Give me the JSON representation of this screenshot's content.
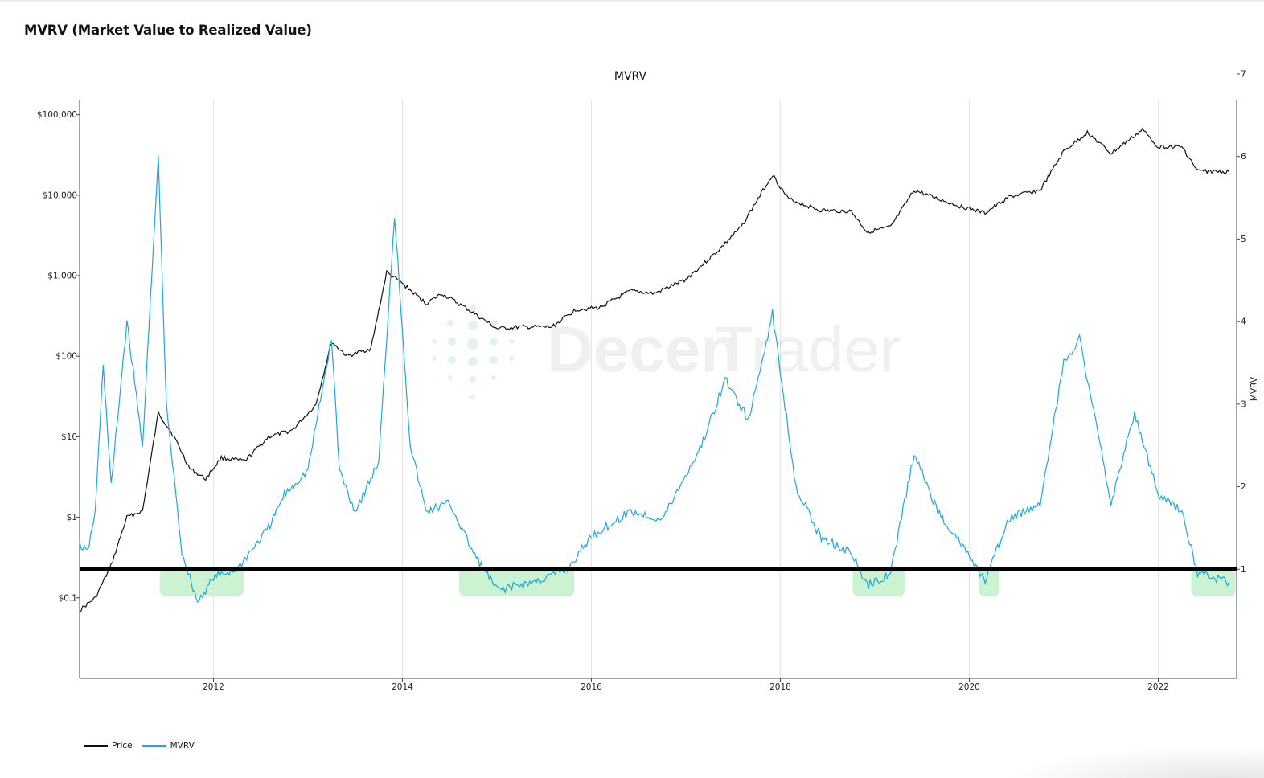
{
  "page": {
    "title": "MVRV (Market Value to Realized Value)"
  },
  "watermark": {
    "text_bold": "Decen",
    "text_light": "Trader"
  },
  "chart_data": {
    "type": "line",
    "title": "MVRV",
    "xlabel": "",
    "y_left": {
      "scale": "log",
      "ticks": [
        "$0.1",
        "$1",
        "$10",
        "$100",
        "$1,000",
        "$10,000",
        "$100,000"
      ],
      "tick_values": [
        0.1,
        1,
        10,
        100,
        1000,
        10000,
        100000
      ],
      "range": [
        0.01,
        150000
      ]
    },
    "y_right": {
      "label": "MVRV",
      "scale": "linear",
      "ticks": [
        "1",
        "2",
        "3",
        "4",
        "5",
        "6",
        "7"
      ],
      "tick_values": [
        1,
        2,
        3,
        4,
        5,
        6,
        7
      ],
      "range": [
        0.0,
        7.0
      ]
    },
    "x_ticks": [
      "2012",
      "2014",
      "2016",
      "2018",
      "2020",
      "2022"
    ],
    "x_range": [
      "2010-08",
      "2022-10"
    ],
    "grid": {
      "x": true,
      "y": false
    },
    "legend_position": "bottom-left",
    "colors": {
      "price": "#111111",
      "mvrv": "#1aa8e0",
      "highlight": "#7ee08c",
      "reference_line": "#000000"
    },
    "reference_line": {
      "axis": "right",
      "value": 1
    },
    "highlight_zones": [
      {
        "start": "2011-07",
        "end": "2012-04"
      },
      {
        "start": "2014-09",
        "end": "2015-10"
      },
      {
        "start": "2018-11",
        "end": "2019-04"
      },
      {
        "start": "2020-03",
        "end": "2020-04"
      },
      {
        "start": "2022-06",
        "end": "2022-10"
      }
    ],
    "series": [
      {
        "name": "Price",
        "axis": "left",
        "points": [
          [
            "2010-08",
            0.07
          ],
          [
            "2010-10",
            0.1
          ],
          [
            "2010-12",
            0.25
          ],
          [
            "2011-02",
            1.0
          ],
          [
            "2011-04",
            1.2
          ],
          [
            "2011-06",
            20
          ],
          [
            "2011-08",
            10
          ],
          [
            "2011-10",
            4
          ],
          [
            "2011-12",
            3
          ],
          [
            "2012-02",
            5.5
          ],
          [
            "2012-05",
            5
          ],
          [
            "2012-08",
            10
          ],
          [
            "2012-11",
            12
          ],
          [
            "2013-02",
            25
          ],
          [
            "2013-04",
            150
          ],
          [
            "2013-06",
            100
          ],
          [
            "2013-09",
            125
          ],
          [
            "2013-11",
            1100
          ],
          [
            "2014-01",
            800
          ],
          [
            "2014-04",
            450
          ],
          [
            "2014-06",
            600
          ],
          [
            "2014-09",
            400
          ],
          [
            "2015-01",
            220
          ],
          [
            "2015-04",
            230
          ],
          [
            "2015-08",
            230
          ],
          [
            "2015-11",
            380
          ],
          [
            "2016-02",
            400
          ],
          [
            "2016-06",
            650
          ],
          [
            "2016-09",
            600
          ],
          [
            "2017-01",
            900
          ],
          [
            "2017-05",
            2000
          ],
          [
            "2017-08",
            4000
          ],
          [
            "2017-12",
            18000
          ],
          [
            "2018-02",
            9000
          ],
          [
            "2018-06",
            6500
          ],
          [
            "2018-10",
            6300
          ],
          [
            "2018-12",
            3500
          ],
          [
            "2019-03",
            4000
          ],
          [
            "2019-06",
            11500
          ],
          [
            "2019-09",
            9000
          ],
          [
            "2019-12",
            7200
          ],
          [
            "2020-03",
            6000
          ],
          [
            "2020-06",
            9500
          ],
          [
            "2020-10",
            11500
          ],
          [
            "2021-01",
            35000
          ],
          [
            "2021-04",
            60000
          ],
          [
            "2021-07",
            33000
          ],
          [
            "2021-11",
            65000
          ],
          [
            "2022-01",
            40000
          ],
          [
            "2022-04",
            40000
          ],
          [
            "2022-06",
            20000
          ],
          [
            "2022-10",
            19500
          ]
        ]
      },
      {
        "name": "MVRV",
        "axis": "right",
        "points": [
          [
            "2010-08",
            1.3
          ],
          [
            "2010-09",
            1.2
          ],
          [
            "2010-10",
            1.7
          ],
          [
            "2010-11",
            3.5
          ],
          [
            "2010-12",
            2.0
          ],
          [
            "2011-02",
            4.0
          ],
          [
            "2011-04",
            2.5
          ],
          [
            "2011-06",
            6.0
          ],
          [
            "2011-07",
            3.0
          ],
          [
            "2011-09",
            1.2
          ],
          [
            "2011-11",
            0.6
          ],
          [
            "2012-01",
            0.9
          ],
          [
            "2012-04",
            1.0
          ],
          [
            "2012-08",
            1.5
          ],
          [
            "2012-10",
            1.9
          ],
          [
            "2013-01",
            2.2
          ],
          [
            "2013-04",
            3.8
          ],
          [
            "2013-05",
            2.2
          ],
          [
            "2013-07",
            1.7
          ],
          [
            "2013-10",
            2.3
          ],
          [
            "2013-12",
            5.3
          ],
          [
            "2014-02",
            2.5
          ],
          [
            "2014-04",
            1.7
          ],
          [
            "2014-07",
            1.8
          ],
          [
            "2014-10",
            1.2
          ],
          [
            "2015-01",
            0.75
          ],
          [
            "2015-06",
            0.85
          ],
          [
            "2015-10",
            1.0
          ],
          [
            "2016-01",
            1.4
          ],
          [
            "2016-06",
            1.7
          ],
          [
            "2016-10",
            1.6
          ],
          [
            "2017-03",
            2.5
          ],
          [
            "2017-06",
            3.3
          ],
          [
            "2017-09",
            2.8
          ],
          [
            "2017-12",
            4.1
          ],
          [
            "2018-03",
            2.0
          ],
          [
            "2018-06",
            1.4
          ],
          [
            "2018-10",
            1.2
          ],
          [
            "2018-12",
            0.8
          ],
          [
            "2019-03",
            0.95
          ],
          [
            "2019-06",
            2.4
          ],
          [
            "2019-09",
            1.7
          ],
          [
            "2019-12",
            1.3
          ],
          [
            "2020-03",
            0.85
          ],
          [
            "2020-06",
            1.6
          ],
          [
            "2020-10",
            1.8
          ],
          [
            "2021-01",
            3.5
          ],
          [
            "2021-03",
            3.8
          ],
          [
            "2021-07",
            1.8
          ],
          [
            "2021-10",
            2.9
          ],
          [
            "2022-01",
            1.9
          ],
          [
            "2022-04",
            1.7
          ],
          [
            "2022-06",
            0.95
          ],
          [
            "2022-08",
            0.9
          ],
          [
            "2022-10",
            0.85
          ]
        ]
      }
    ]
  }
}
